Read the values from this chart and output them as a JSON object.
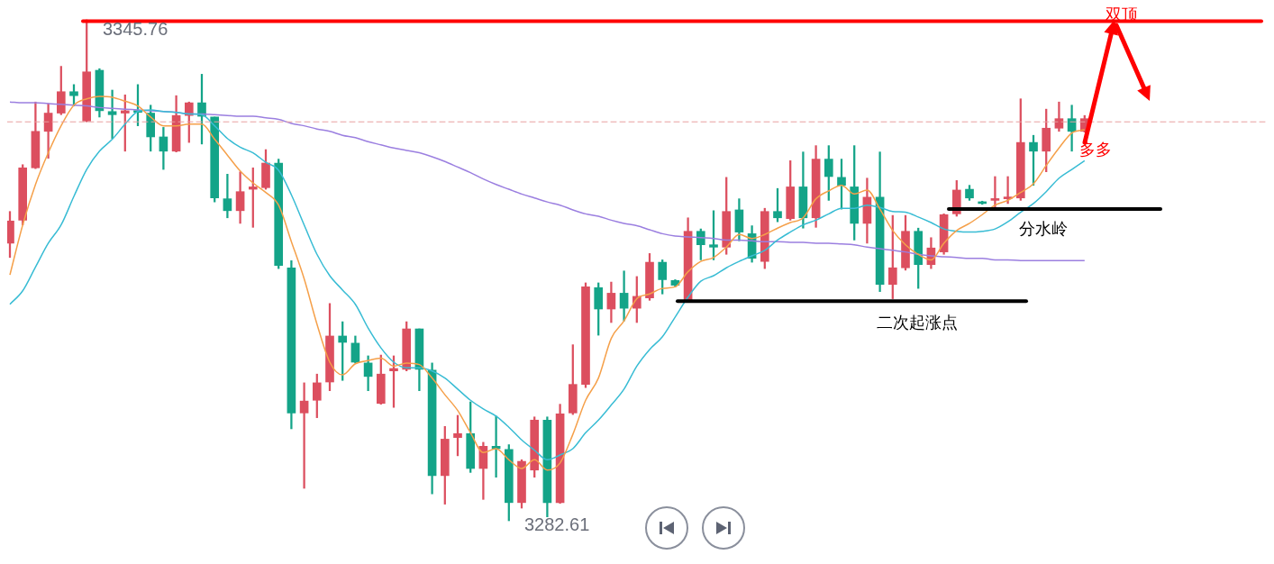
{
  "chart_data": {
    "type": "candlestick",
    "categories": [
      null,
      null,
      null,
      null,
      null,
      null,
      null,
      null,
      null,
      null,
      null,
      null,
      null,
      null,
      null,
      null,
      null,
      null,
      null,
      null,
      null,
      null,
      null,
      null,
      null,
      null,
      null,
      null,
      null,
      null,
      null,
      null,
      null,
      null,
      null,
      null,
      null,
      null,
      null,
      null,
      null,
      null,
      null,
      null,
      null,
      null,
      null,
      null,
      null,
      null,
      null,
      null,
      null,
      null,
      null,
      null,
      null,
      null,
      null,
      null,
      null,
      null,
      null,
      null,
      null,
      null,
      null,
      null,
      null,
      null,
      null,
      null,
      null,
      null,
      null,
      null,
      null,
      null,
      null,
      null,
      null,
      null,
      null,
      null,
      null
    ],
    "ohlc": [
      [
        3317.6,
        3321.6,
        3315.8,
        3320.4
      ],
      [
        3320.5,
        3327.5,
        3319.9,
        3327.1
      ],
      [
        3327.1,
        3335.4,
        3327.0,
        3331.7
      ],
      [
        3331.7,
        3335.2,
        3328.3,
        3334.0
      ],
      [
        3334.0,
        3339.9,
        3333.8,
        3336.7
      ],
      [
        3336.7,
        3337.6,
        3334.9,
        3336.2
      ],
      [
        3333.0,
        3345.76,
        3332.9,
        3339.2
      ],
      [
        3339.4,
        3339.6,
        3333.5,
        3334.3
      ],
      [
        3334.2,
        3336.9,
        3330.8,
        3333.8
      ],
      [
        3334.0,
        3336.3,
        3329.2,
        3334.3
      ],
      [
        3334.3,
        3337.6,
        3332.4,
        3334.1
      ],
      [
        3334.0,
        3335.0,
        3329.2,
        3331.0
      ],
      [
        3331.0,
        3332.2,
        3326.9,
        3329.2
      ],
      [
        3329.2,
        3336.2,
        3329.1,
        3333.7
      ],
      [
        3333.7,
        3335.4,
        3330.3,
        3335.3
      ],
      [
        3335.3,
        3338.9,
        3330.1,
        3333.6
      ],
      [
        3333.5,
        3333.5,
        3322.8,
        3323.3
      ],
      [
        3323.2,
        3326.3,
        3320.8,
        3321.7
      ],
      [
        3321.7,
        3326.6,
        3320.1,
        3324.1
      ],
      [
        3324.4,
        3327.1,
        3319.6,
        3324.7
      ],
      [
        3324.6,
        3329.4,
        3324.4,
        3327.7
      ],
      [
        3327.7,
        3328.2,
        3314.4,
        3314.8
      ],
      [
        3314.5,
        3315.4,
        3294.2,
        3296.2
      ],
      [
        3296.2,
        3300.0,
        3286.7,
        3297.7
      ],
      [
        3297.8,
        3301.1,
        3295.6,
        3300.0
      ],
      [
        3300.1,
        3310.0,
        3299.0,
        3305.9
      ],
      [
        3305.9,
        3307.7,
        3300.3,
        3305.1
      ],
      [
        3305.0,
        3305.9,
        3302.5,
        3302.6
      ],
      [
        3302.5,
        3303.4,
        3299.0,
        3300.8
      ],
      [
        3297.4,
        3303.5,
        3297.3,
        3301.1
      ],
      [
        3301.5,
        3303.4,
        3296.9,
        3301.8
      ],
      [
        3301.7,
        3307.7,
        3301.5,
        3306.8
      ],
      [
        3306.8,
        3306.8,
        3299.0,
        3301.7
      ],
      [
        3301.6,
        3302.5,
        3286.0,
        3288.3
      ],
      [
        3288.3,
        3294.5,
        3284.7,
        3292.9
      ],
      [
        3293.1,
        3295.9,
        3290.8,
        3293.6
      ],
      [
        3293.6,
        3297.6,
        3288.7,
        3289.2
      ],
      [
        3289.2,
        3292.5,
        3285.3,
        3292.0
      ],
      [
        3292.0,
        3295.8,
        3288.1,
        3291.7
      ],
      [
        3291.6,
        3292.2,
        3282.61,
        3284.9
      ],
      [
        3284.9,
        3290.3,
        3284.2,
        3290.1
      ],
      [
        3289.0,
        3295.7,
        3288.1,
        3295.3
      ],
      [
        3295.3,
        3295.7,
        3283.1,
        3284.9
      ],
      [
        3284.9,
        3297.3,
        3284.8,
        3296.1
      ],
      [
        3296.2,
        3304.8,
        3296.0,
        3299.8
      ],
      [
        3299.8,
        3312.6,
        3299.4,
        3312.1
      ],
      [
        3312.0,
        3312.6,
        3306.0,
        3309.3
      ],
      [
        3309.3,
        3312.7,
        3307.6,
        3311.3
      ],
      [
        3311.3,
        3314.1,
        3307.8,
        3309.4
      ],
      [
        3309.4,
        3313.4,
        3307.6,
        3310.9
      ],
      [
        3310.7,
        3316.3,
        3310.4,
        3315.2
      ],
      [
        3315.2,
        3315.5,
        3311.2,
        3313.0
      ],
      [
        3312.9,
        3313.0,
        3312.1,
        3312.3
      ],
      [
        3310.4,
        3320.8,
        3310.3,
        3319.1
      ],
      [
        3319.1,
        3319.4,
        3315.5,
        3317.4
      ],
      [
        3317.4,
        3321.7,
        3315.5,
        3317.1
      ],
      [
        3317.1,
        3325.9,
        3316.2,
        3321.6
      ],
      [
        3321.8,
        3323.2,
        3317.9,
        3319.0
      ],
      [
        3318.8,
        3319.8,
        3315.2,
        3315.7
      ],
      [
        3315.3,
        3322.0,
        3314.4,
        3321.6
      ],
      [
        3321.6,
        3324.5,
        3320.3,
        3320.8
      ],
      [
        3320.7,
        3328.0,
        3320.5,
        3324.7
      ],
      [
        3324.7,
        3329.1,
        3319.5,
        3320.8
      ],
      [
        3320.8,
        3329.9,
        3319.6,
        3328.2
      ],
      [
        3328.2,
        3329.9,
        3323.0,
        3326.0
      ],
      [
        3325.9,
        3328.2,
        3321.9,
        3324.9
      ],
      [
        3324.7,
        3329.9,
        3318.0,
        3320.1
      ],
      [
        3320.1,
        3325.8,
        3317.6,
        3323.4
      ],
      [
        3323.4,
        3329.1,
        3311.5,
        3312.4
      ],
      [
        3312.4,
        3321.1,
        3310.6,
        3314.5
      ],
      [
        3314.5,
        3321.1,
        3314.2,
        3319.1
      ],
      [
        3319.1,
        3319.5,
        3311.9,
        3314.9
      ],
      [
        3314.9,
        3318.3,
        3314.4,
        3317.0
      ],
      [
        3316.5,
        3321.3,
        3316.2,
        3321.2
      ],
      [
        3321.3,
        3325.5,
        3321.0,
        3324.3
      ],
      [
        3324.4,
        3324.9,
        3323.0,
        3323.3
      ],
      [
        3322.8,
        3322.9,
        3322.5,
        3322.6
      ],
      [
        3323.0,
        3326.0,
        3322.1,
        3323.2
      ],
      [
        3323.2,
        3326.0,
        3322.6,
        3323.4
      ],
      [
        3323.3,
        3335.8,
        3323.0,
        3330.3
      ],
      [
        3330.3,
        3331.2,
        3324.9,
        3329.2
      ],
      [
        3329.2,
        3334.5,
        3326.6,
        3332.1
      ],
      [
        3332.1,
        3335.4,
        3331.7,
        3333.3
      ],
      [
        3333.3,
        3335.0,
        3329.2,
        3331.7
      ],
      [
        3331.7,
        3333.7,
        3331.6,
        3333.3
      ]
    ],
    "colors": [
      "#dc4f5f",
      "#dc4f5f",
      "#dc4f5f",
      "#dc4f5f",
      "#dc4f5f",
      "#14a488",
      "#dc4f5f",
      "#14a488",
      "#14a488",
      "#dc4f5f",
      "#14a488",
      "#14a488",
      "#14a488",
      "#dc4f5f",
      "#dc4f5f",
      "#14a488",
      "#14a488",
      "#14a488",
      "#dc4f5f",
      "#dc4f5f",
      "#dc4f5f",
      "#14a488",
      "#14a488",
      "#dc4f5f",
      "#dc4f5f",
      "#dc4f5f",
      "#14a488",
      "#14a488",
      "#14a488",
      "#dc4f5f",
      "#dc4f5f",
      "#dc4f5f",
      "#14a488",
      "#14a488",
      "#dc4f5f",
      "#dc4f5f",
      "#14a488",
      "#dc4f5f",
      "#14a488",
      "#14a488",
      "#dc4f5f",
      "#dc4f5f",
      "#14a488",
      "#dc4f5f",
      "#dc4f5f",
      "#dc4f5f",
      "#14a488",
      "#dc4f5f",
      "#14a488",
      "#dc4f5f",
      "#dc4f5f",
      "#14a488",
      "#14a488",
      "#dc4f5f",
      "#14a488",
      "#14a488",
      "#dc4f5f",
      "#14a488",
      "#14a488",
      "#dc4f5f",
      "#14a488",
      "#dc4f5f",
      "#14a488",
      "#dc4f5f",
      "#14a488",
      "#14a488",
      "#14a488",
      "#dc4f5f",
      "#14a488",
      "#dc4f5f",
      "#dc4f5f",
      "#14a488",
      "#dc4f5f",
      "#dc4f5f",
      "#dc4f5f",
      "#14a488",
      "#14a488",
      "#dc4f5f",
      "#dc4f5f",
      "#dc4f5f",
      "#14a488",
      "#dc4f5f",
      "#dc4f5f",
      "#14a488",
      "#dc4f5f"
    ],
    "series": [
      {
        "type": "line",
        "color": "#f5a04a",
        "values": [
          3313.6,
          3319.9,
          3325.0,
          3329.0,
          3332.4,
          3335.0,
          3335.8,
          3336.1,
          3336.0,
          3335.5,
          3334.9,
          3333.5,
          3332.4,
          3332.4,
          3332.6,
          3332.6,
          3330.7,
          3328.7,
          3326.7,
          3325.2,
          3324.0,
          3322.4,
          3317.8,
          3313.1,
          3307.4,
          3302.6,
          3301.0,
          3302.4,
          3302.8,
          3303.1,
          3302.1,
          3302.5,
          3302.3,
          3300.6,
          3298.5,
          3296.5,
          3293.7,
          3291.2,
          3291.7,
          3290.3,
          3289.2,
          3290.3,
          3289.0,
          3289.9,
          3293.5,
          3297.8,
          3300.6,
          3305.6,
          3307.8,
          3310.6,
          3311.2,
          3311.9,
          3312.1,
          3314.0,
          3315.3,
          3315.8,
          3317.1,
          3318.7,
          3318.2,
          3318.7,
          3319.5,
          3320.2,
          3320.8,
          3323.2,
          3324.2,
          3324.9,
          3323.8,
          3324.3,
          3321.9,
          3319.2,
          3317.4,
          3316.2,
          3315.5,
          3317.6,
          3319.2,
          3320.1,
          3321.2,
          3322.4,
          3323.0,
          3324.0,
          3325.1,
          3327.4,
          3329.6,
          3331.5,
          3331.9
        ]
      },
      {
        "type": "line",
        "color": "#38bcd4",
        "values": [
          3309.9,
          3311.6,
          3314.6,
          3317.6,
          3319.9,
          3323.5,
          3326.9,
          3329.2,
          3330.7,
          3332.6,
          3334.2,
          3334.4,
          3334.2,
          3334.1,
          3333.9,
          3333.8,
          3332.4,
          3330.8,
          3329.7,
          3329.0,
          3327.8,
          3326.8,
          3323.7,
          3319.9,
          3316.2,
          3313.5,
          3311.7,
          3309.9,
          3306.9,
          3304.4,
          3302.6,
          3301.9,
          3301.9,
          3301.5,
          3300.6,
          3299.2,
          3297.8,
          3296.7,
          3295.8,
          3294.4,
          3292.8,
          3291.5,
          3290.3,
          3290.9,
          3291.7,
          3293.7,
          3295.3,
          3297.2,
          3299.2,
          3302.1,
          3304.2,
          3305.8,
          3308.3,
          3310.8,
          3312.8,
          3313.5,
          3314.5,
          3315.3,
          3316.0,
          3316.7,
          3318.0,
          3319.0,
          3319.9,
          3320.5,
          3321.3,
          3322.0,
          3322.0,
          3322.4,
          3322.1,
          3321.6,
          3321.5,
          3320.9,
          3320.2,
          3319.4,
          3319.1,
          3319.0,
          3319.1,
          3319.4,
          3320.3,
          3321.5,
          3322.6,
          3324.1,
          3325.8,
          3326.9,
          3328.0
        ]
      },
      {
        "type": "line",
        "color": "#9b7fe0",
        "values": [
          3335.4,
          3335.3,
          3335.3,
          3335.2,
          3335.1,
          3335.0,
          3334.9,
          3334.7,
          3334.6,
          3334.5,
          3334.4,
          3334.3,
          3334.2,
          3334.1,
          3333.9,
          3333.9,
          3333.8,
          3333.7,
          3333.6,
          3333.6,
          3333.4,
          3333.2,
          3332.7,
          3332.4,
          3332.0,
          3331.7,
          3331.2,
          3330.9,
          3330.4,
          3330.0,
          3329.6,
          3329.3,
          3329.0,
          3328.5,
          3327.9,
          3327.2,
          3326.5,
          3325.7,
          3325.0,
          3324.4,
          3323.8,
          3323.3,
          3322.8,
          3322.4,
          3321.8,
          3321.3,
          3321.0,
          3320.5,
          3320.1,
          3319.8,
          3319.3,
          3318.8,
          3318.5,
          3318.4,
          3318.3,
          3318.2,
          3318.0,
          3318.0,
          3317.9,
          3317.8,
          3317.8,
          3317.7,
          3317.7,
          3317.6,
          3317.6,
          3317.5,
          3317.4,
          3317.1,
          3316.9,
          3316.7,
          3316.5,
          3316.2,
          3316.0,
          3315.9,
          3315.8,
          3315.7,
          3315.7,
          3315.5,
          3315.5,
          3315.4,
          3315.4,
          3315.4,
          3315.4,
          3315.4,
          3315.4
        ]
      }
    ],
    "ref_lines": [
      {
        "axis": "y",
        "value": 3345.6,
        "label": "双顶",
        "color": "#ff0000"
      },
      {
        "axis": "y",
        "value": 3321.9,
        "label": "分水岭",
        "color": "#000000"
      },
      {
        "axis": "y",
        "value": 3310.3,
        "label": "二次起涨点",
        "color": "#000000"
      },
      {
        "axis": "y",
        "value": 3332.9,
        "color": "#e8a0a0",
        "line_style": "dashed"
      }
    ],
    "annotations": [
      "3345.76",
      "3282.61",
      "多多"
    ],
    "legend": false
  }
}
